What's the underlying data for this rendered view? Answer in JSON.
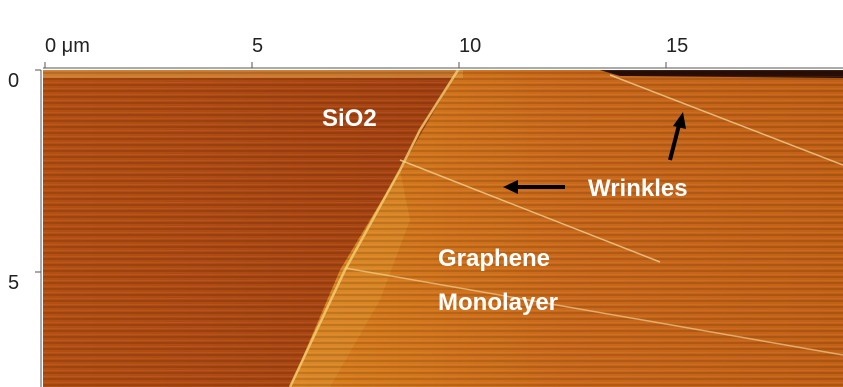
{
  "x_axis": {
    "ticks": [
      "0 μm",
      "5",
      "10",
      "15"
    ]
  },
  "y_axis": {
    "ticks": [
      "0",
      "5"
    ]
  },
  "annotations": {
    "substrate": "SiO2",
    "wrinkles": "Wrinkles",
    "graphene": [
      "Graphene",
      "Monolayer"
    ]
  }
}
